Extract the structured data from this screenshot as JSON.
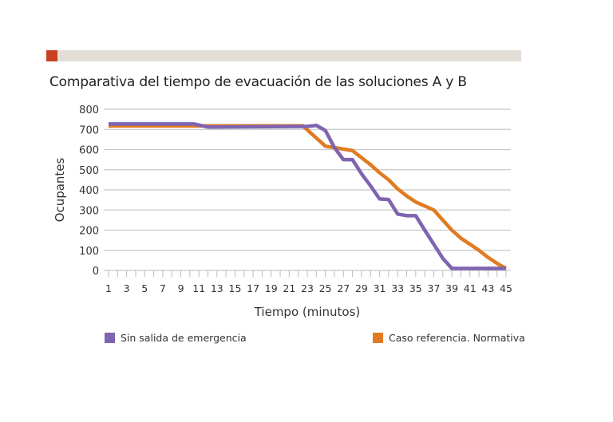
{
  "chart_data": {
    "type": "line",
    "title": "Comparativa del tiempo de evacuación de las soluciones A y B",
    "xlabel": "Tiempo (minutos)",
    "ylabel": "Ocupantes",
    "ylim": [
      0,
      800
    ],
    "xlim": [
      1,
      45
    ],
    "yticks": [
      "0",
      "100",
      "200",
      "300",
      "400",
      "500",
      "600",
      "700",
      "800"
    ],
    "xticks": [
      "1",
      "3",
      "5",
      "7",
      "9",
      "11",
      "13",
      "15",
      "17",
      "19",
      "21",
      "23",
      "25",
      "27",
      "29",
      "31",
      "33",
      "35",
      "37",
      "39",
      "41",
      "43",
      "45"
    ],
    "grid": true,
    "legend_position": "bottom",
    "series": [
      {
        "name": "Sin salida de emergencia",
        "color": "#7f64b0",
        "points": [
          [
            1,
            727
          ],
          [
            10.5,
            727
          ],
          [
            12,
            712
          ],
          [
            23,
            715
          ],
          [
            24,
            720
          ],
          [
            25,
            695
          ],
          [
            26,
            610
          ],
          [
            27,
            550
          ],
          [
            28,
            550
          ],
          [
            29,
            480
          ],
          [
            30,
            420
          ],
          [
            31,
            355
          ],
          [
            32,
            352
          ],
          [
            33,
            280
          ],
          [
            34,
            272
          ],
          [
            35,
            272
          ],
          [
            36,
            200
          ],
          [
            37,
            130
          ],
          [
            38,
            60
          ],
          [
            39,
            10
          ],
          [
            45,
            10
          ]
        ]
      },
      {
        "name": "Caso referencia. Normativa",
        "color": "#e07b22",
        "points": [
          [
            1,
            718
          ],
          [
            22.5,
            718
          ],
          [
            25,
            617
          ],
          [
            28,
            595
          ],
          [
            29,
            560
          ],
          [
            30,
            525
          ],
          [
            31,
            485
          ],
          [
            32,
            450
          ],
          [
            33,
            405
          ],
          [
            34,
            370
          ],
          [
            35,
            340
          ],
          [
            37,
            300
          ],
          [
            38,
            250
          ],
          [
            39,
            200
          ],
          [
            40,
            160
          ],
          [
            41,
            130
          ],
          [
            42,
            100
          ],
          [
            43,
            65
          ],
          [
            44,
            35
          ],
          [
            45,
            10
          ]
        ]
      }
    ]
  }
}
